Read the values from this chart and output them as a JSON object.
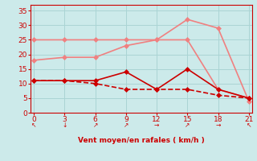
{
  "x": [
    0,
    3,
    6,
    9,
    12,
    15,
    18,
    21
  ],
  "line1": [
    25,
    25,
    25,
    25,
    25,
    25,
    8,
    5
  ],
  "line2": [
    18,
    19,
    19,
    23,
    25,
    32,
    29,
    4
  ],
  "line3": [
    11,
    11,
    11,
    14,
    8,
    15,
    8,
    5
  ],
  "line4": [
    11,
    11,
    10,
    8,
    8,
    8,
    6,
    5
  ],
  "color_light": "#f08080",
  "color_dark": "#cc0000",
  "bg_color": "#cceaea",
  "xlabel": "Vent moyen/en rafales ( km/h )",
  "xlabel_color": "#cc0000",
  "tick_color": "#cc0000",
  "ylim": [
    0,
    37
  ],
  "xlim": [
    -0.3,
    21.3
  ],
  "yticks": [
    0,
    5,
    10,
    15,
    20,
    25,
    30,
    35
  ],
  "xticks": [
    0,
    3,
    6,
    9,
    12,
    15,
    18,
    21
  ],
  "grid_color": "#aad4d4",
  "arrow_symbols": [
    "↖",
    "↓",
    "↗",
    "↗",
    "→",
    "↗",
    "→",
    "↖"
  ],
  "marker_size": 3,
  "line_width": 1.2
}
